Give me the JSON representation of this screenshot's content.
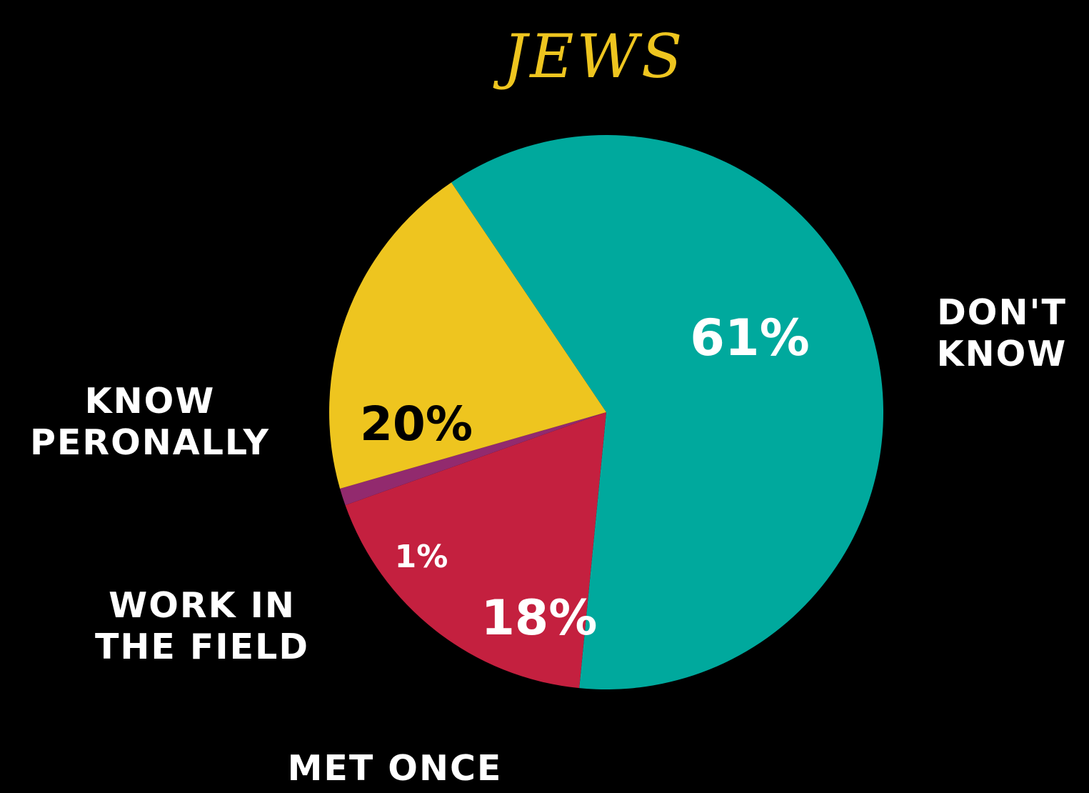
{
  "chart_data": {
    "type": "pie",
    "title": "JEWS",
    "slices": [
      {
        "label_lines": [
          "DON'T",
          "KNOW"
        ],
        "value": 61,
        "value_label": "61%",
        "color": "#00A99D",
        "value_color": "#ffffff"
      },
      {
        "label_lines": [
          "MET ONCE"
        ],
        "value": 18,
        "value_label": "18%",
        "color": "#C4203F",
        "value_color": "#ffffff"
      },
      {
        "label_lines": [
          "WORK IN",
          "THE FIELD"
        ],
        "value": 1,
        "value_label": "1%",
        "color": "#922A6E",
        "value_color": "#ffffff"
      },
      {
        "label_lines": [
          "KNOW",
          "PERONALLY"
        ],
        "value": 20,
        "value_label": "20%",
        "color": "#EEC51F",
        "value_color": "#000000"
      }
    ]
  },
  "colors": {
    "background": "#000000",
    "title": "#EEC51F",
    "labels": "#ffffff"
  }
}
